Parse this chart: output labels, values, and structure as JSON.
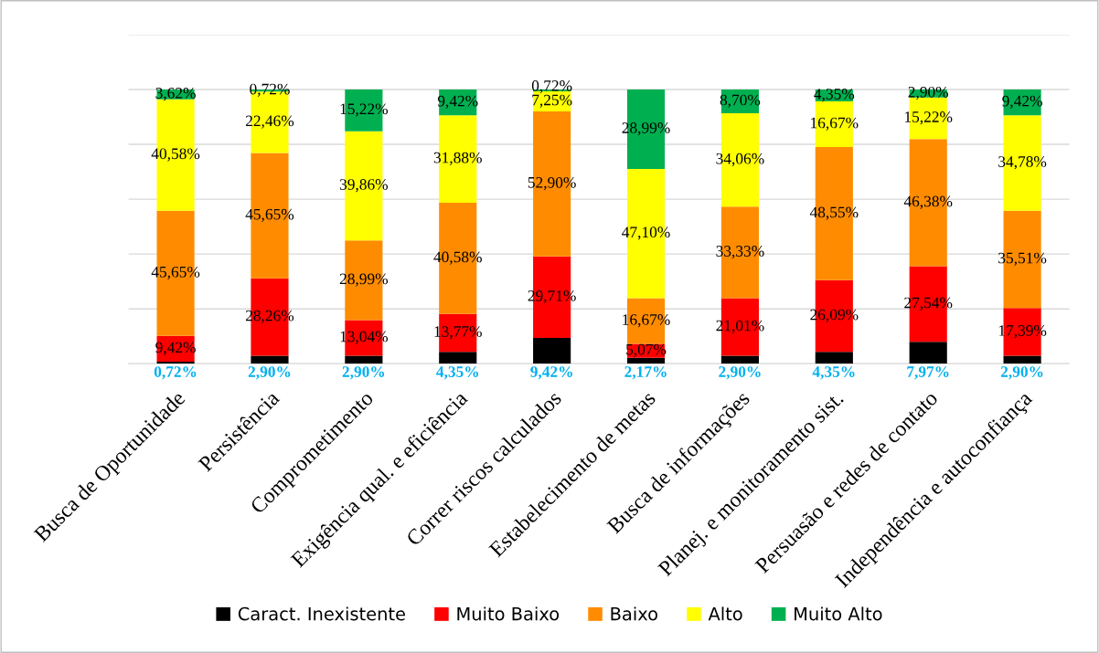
{
  "chart_data": {
    "type": "bar",
    "stacked": true,
    "categories": [
      "Busca de Oportunidade",
      "Persistência",
      "Comprometimento",
      "Exigência qual. e eficiência",
      "Correr riscos calculados",
      "Estabelecimento de metas",
      "Busca de informações",
      "Planej. e monitoramento sist.",
      "Persuasão e redes de contato",
      "Independência e autoconfiança"
    ],
    "series": [
      {
        "name": "Caract. Inexistente",
        "color": "#000000",
        "values": [
          0.72,
          2.9,
          2.9,
          4.35,
          9.42,
          2.17,
          2.9,
          4.35,
          7.97,
          2.9
        ],
        "value_labels": [
          "0,72%",
          "2,90%",
          "2,90%",
          "4,35%",
          "9,42%",
          "2,17%",
          "2,90%",
          "4,35%",
          "7,97%",
          "2,90%"
        ]
      },
      {
        "name": "Muito Baixo",
        "color": "#ff0000",
        "values": [
          9.42,
          28.26,
          13.04,
          13.77,
          29.71,
          5.07,
          21.01,
          26.09,
          27.54,
          17.39
        ],
        "value_labels": [
          "9,42%",
          "28,26%",
          "13,04%",
          "13,77%",
          "29,71%",
          "5,07%",
          "21,01%",
          "26,09%",
          "27,54%",
          "17,39%"
        ]
      },
      {
        "name": "Baixo",
        "color": "#ff8c00",
        "values": [
          45.65,
          45.65,
          28.99,
          40.58,
          52.9,
          16.67,
          33.33,
          48.55,
          46.38,
          35.51
        ],
        "value_labels": [
          "45,65%",
          "45,65%",
          "28,99%",
          "40,58%",
          "52,90%",
          "16,67%",
          "33,33%",
          "48,55%",
          "46,38%",
          "35,51%"
        ]
      },
      {
        "name": "Alto",
        "color": "#ffff00",
        "values": [
          40.58,
          22.46,
          39.86,
          31.88,
          7.25,
          47.1,
          34.06,
          16.67,
          15.22,
          34.78
        ],
        "value_labels": [
          "40,58%",
          "22,46%",
          "39,86%",
          "31,88%",
          "7,25%",
          "47,10%",
          "34,06%",
          "16,67%",
          "15,22%",
          "34,78%"
        ]
      },
      {
        "name": "Muito Alto",
        "color": "#00b050",
        "values": [
          3.62,
          0.72,
          15.22,
          9.42,
          0.72,
          28.99,
          8.7,
          4.35,
          2.9,
          9.42
        ],
        "value_labels": [
          "3,62%",
          "0,72%",
          "15,22%",
          "9,42%",
          "0,72%",
          "28,99%",
          "8,70%",
          "4,35%",
          "2,90%",
          "9,42%"
        ]
      }
    ],
    "ylim": [
      0,
      120
    ],
    "yticks": [
      {
        "value": 0,
        "label": null
      },
      {
        "value": 20,
        "label": null
      },
      {
        "value": 40,
        "label": null
      },
      {
        "value": 60,
        "label": null
      },
      {
        "value": 80,
        "label": null
      },
      {
        "value": 100,
        "label": null
      },
      {
        "value": 120,
        "label": null
      }
    ],
    "tick_labels": "x",
    "grid": "y",
    "legend": "bottom"
  }
}
